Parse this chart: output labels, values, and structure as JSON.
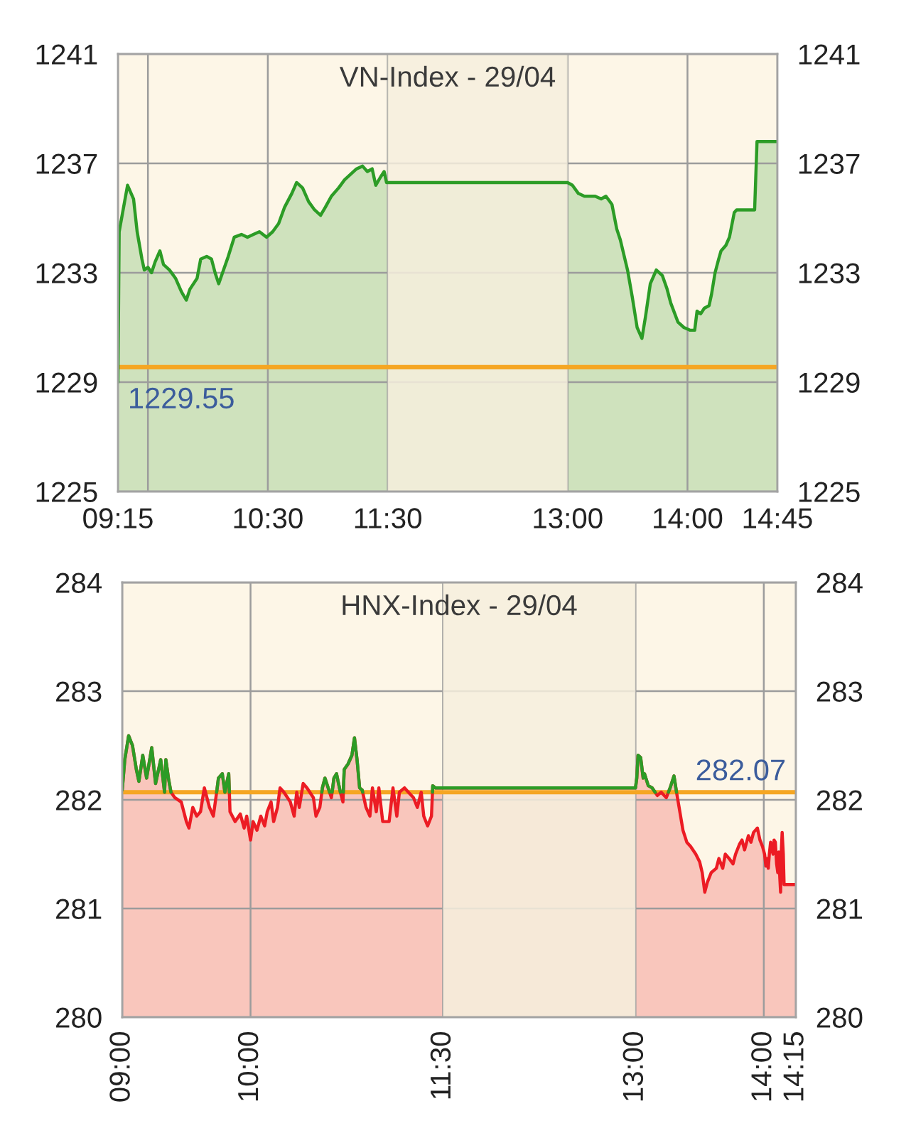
{
  "chart_data": [
    {
      "type": "area",
      "title": "VN-Index - 29/04",
      "x": [
        9.25,
        9.26,
        9.33,
        9.38,
        9.41,
        9.45,
        9.47,
        9.5,
        9.53,
        9.56,
        9.6,
        9.63,
        9.68,
        9.73,
        9.78,
        9.82,
        9.85,
        9.91,
        9.94,
        9.99,
        10.03,
        10.06,
        10.09,
        10.13,
        10.17,
        10.22,
        10.28,
        10.33,
        10.38,
        10.43,
        10.49,
        10.54,
        10.59,
        10.64,
        10.7,
        10.74,
        10.79,
        10.84,
        10.89,
        10.94,
        10.98,
        11.03,
        11.09,
        11.14,
        11.19,
        11.24,
        11.29,
        11.33,
        11.37,
        11.4,
        11.44,
        11.47,
        11.49,
        11.5,
        13.0,
        13.04,
        13.09,
        13.14,
        13.23,
        13.28,
        13.32,
        13.37,
        13.41,
        13.44,
        13.5,
        13.54,
        13.58,
        13.62,
        13.65,
        13.69,
        13.74,
        13.79,
        13.83,
        13.86,
        13.92,
        13.97,
        14.02,
        14.06,
        14.08,
        14.11,
        14.14,
        14.18,
        14.2,
        14.23,
        14.26,
        14.28,
        14.32,
        14.35,
        14.39,
        14.41,
        14.56,
        14.58,
        14.75
      ],
      "series": [
        {
          "color": "#2c9c26",
          "values": [
            1229.0,
            1234.5,
            1236.2,
            1235.7,
            1234.5,
            1233.5,
            1233.1,
            1233.2,
            1233.0,
            1233.4,
            1233.8,
            1233.3,
            1233.1,
            1232.8,
            1232.3,
            1232.0,
            1232.4,
            1232.8,
            1233.5,
            1233.6,
            1233.5,
            1233.0,
            1232.6,
            1233.1,
            1233.6,
            1234.3,
            1234.4,
            1234.3,
            1234.4,
            1234.5,
            1234.3,
            1234.5,
            1234.8,
            1235.4,
            1235.9,
            1236.3,
            1236.1,
            1235.6,
            1235.3,
            1235.1,
            1235.4,
            1235.8,
            1236.1,
            1236.4,
            1236.6,
            1236.8,
            1236.9,
            1236.7,
            1236.8,
            1236.2,
            1236.5,
            1236.7,
            1236.3,
            1236.3,
            1236.3,
            1236.2,
            1235.9,
            1235.8,
            1235.8,
            1235.7,
            1235.8,
            1235.5,
            1234.6,
            1234.2,
            1233.1,
            1232.1,
            1231.0,
            1230.6,
            1231.4,
            1232.6,
            1233.1,
            1232.9,
            1232.4,
            1231.9,
            1231.2,
            1231.0,
            1230.9,
            1230.9,
            1231.6,
            1231.5,
            1231.7,
            1231.8,
            1232.2,
            1233.0,
            1233.5,
            1233.8,
            1234.0,
            1234.3,
            1235.2,
            1235.3,
            1235.3,
            1237.8,
            1237.8
          ]
        }
      ],
      "xlim": [
        9.25,
        14.75
      ],
      "xticks": [
        {
          "value": 9.25,
          "label": "09:15"
        },
        {
          "value": 9.5,
          "label": null
        },
        {
          "value": 10.5,
          "label": "10:30"
        },
        {
          "value": 11.5,
          "label": "11:30"
        },
        {
          "value": 13,
          "label": "13:00"
        },
        {
          "value": 14,
          "label": "14:00"
        },
        {
          "value": 14.75,
          "label": "14:45"
        }
      ],
      "ylim": [
        1225,
        1241
      ],
      "yticks": [
        1225,
        1229,
        1233,
        1237,
        1241
      ],
      "y2lim": [
        1225,
        1241
      ],
      "y2ticks": [
        1225,
        1229,
        1233,
        1237,
        1241
      ],
      "ref_lines": [
        {
          "axis": "y",
          "value": 1229.55,
          "label": "1229.55",
          "color": "#f5a623"
        }
      ],
      "bands": [
        {
          "axis": "x",
          "from": 11.5,
          "to": 13,
          "color": "#f6efdd"
        }
      ],
      "grid": true
    },
    {
      "type": "area",
      "title": "HNX-Index - 29/04",
      "x": [
        9.0,
        9.02,
        9.05,
        9.08,
        9.11,
        9.13,
        9.16,
        9.19,
        9.23,
        9.26,
        9.3,
        9.33,
        9.34,
        9.36,
        9.38,
        9.41,
        9.46,
        9.5,
        9.52,
        9.55,
        9.58,
        9.61,
        9.64,
        9.68,
        9.71,
        9.73,
        9.75,
        9.78,
        9.8,
        9.83,
        9.84,
        9.88,
        9.92,
        9.95,
        9.97,
        10.0,
        10.02,
        10.05,
        10.08,
        10.11,
        10.13,
        10.16,
        10.18,
        10.21,
        10.23,
        10.26,
        10.31,
        10.34,
        10.36,
        10.38,
        10.41,
        10.44,
        10.49,
        10.51,
        10.54,
        10.56,
        10.58,
        10.63,
        10.65,
        10.67,
        10.7,
        10.72,
        10.73,
        10.76,
        10.79,
        10.81,
        10.83,
        10.85,
        10.87,
        10.9,
        10.93,
        10.95,
        10.98,
        11.0,
        11.03,
        11.08,
        11.11,
        11.14,
        11.16,
        11.2,
        11.23,
        11.27,
        11.3,
        11.33,
        11.35,
        11.38,
        11.41,
        11.42,
        11.44,
        11.5,
        13.0,
        13.01,
        13.02,
        13.04,
        13.06,
        13.07,
        13.1,
        13.13,
        13.17,
        13.2,
        13.24,
        13.27,
        13.3,
        13.32,
        13.34,
        13.37,
        13.4,
        13.43,
        13.47,
        13.5,
        13.52,
        13.54,
        13.56,
        13.59,
        13.63,
        13.65,
        13.68,
        13.7,
        13.73,
        13.76,
        13.78,
        13.81,
        13.83,
        13.85,
        13.88,
        13.9,
        13.92,
        13.95,
        13.97,
        13.99,
        14.006,
        14.016,
        14.026,
        14.035,
        14.043,
        14.053,
        14.063,
        14.072,
        14.08,
        14.09,
        14.1,
        14.109,
        14.117,
        14.125,
        14.131,
        14.137,
        14.143,
        14.152,
        14.158,
        14.25
      ],
      "series": [
        {
          "color": "#ec1c24",
          "values": [
            282.09,
            282.37,
            282.59,
            282.5,
            282.28,
            282.17,
            282.41,
            282.2,
            282.48,
            282.15,
            282.37,
            282.07,
            282.37,
            282.2,
            282.07,
            282.02,
            281.98,
            281.8,
            281.74,
            281.93,
            281.85,
            281.89,
            282.11,
            281.93,
            281.85,
            282.02,
            282.2,
            282.24,
            282.07,
            282.24,
            281.89,
            281.8,
            281.87,
            281.74,
            281.85,
            281.63,
            281.8,
            281.72,
            281.85,
            281.76,
            281.89,
            281.98,
            281.8,
            281.93,
            282.11,
            282.07,
            281.98,
            281.85,
            282.07,
            281.93,
            282.15,
            282.11,
            282.02,
            281.85,
            281.93,
            282.11,
            282.2,
            282.02,
            282.2,
            282.24,
            282.07,
            281.98,
            282.28,
            282.33,
            282.41,
            282.57,
            282.37,
            282.11,
            282.09,
            281.93,
            281.85,
            282.11,
            281.89,
            282.11,
            281.8,
            281.8,
            282.11,
            281.85,
            282.07,
            282.11,
            282.07,
            282.02,
            281.93,
            282.07,
            281.85,
            281.76,
            281.85,
            282.13,
            282.11,
            282.11,
            282.11,
            282.2,
            282.41,
            282.39,
            282.2,
            282.24,
            282.13,
            282.11,
            282.04,
            282.07,
            282.02,
            282.11,
            282.22,
            282.07,
            281.93,
            281.72,
            281.61,
            281.57,
            281.5,
            281.43,
            281.33,
            281.15,
            281.24,
            281.33,
            281.37,
            281.46,
            281.37,
            281.5,
            281.46,
            281.41,
            281.5,
            281.59,
            281.63,
            281.54,
            281.67,
            281.61,
            281.7,
            281.74,
            281.63,
            281.57,
            281.5,
            281.39,
            281.46,
            281.37,
            281.5,
            281.61,
            281.54,
            281.5,
            281.63,
            281.61,
            281.41,
            281.33,
            281.52,
            281.28,
            281.15,
            281.54,
            281.7,
            281.5,
            281.22,
            281.22
          ]
        },
        {
          "type": "line",
          "color": "#2c9c26",
          "x": [
            9.0,
            9.02,
            9.05,
            9.08,
            9.11,
            9.13,
            9.16,
            9.19,
            9.23,
            9.26,
            9.3,
            9.33,
            9.34,
            9.36,
            9.38,
            9.395,
            9.736,
            9.75,
            9.78,
            9.8,
            9.83,
            9.835,
            9.9,
            10.556,
            10.56,
            10.58,
            10.616,
            10.62,
            10.636,
            10.65,
            10.67,
            10.7,
            10.71,
            10.723,
            10.73,
            10.76,
            10.79,
            10.81,
            10.83,
            10.85,
            10.87,
            10.874,
            10.91,
            11.418,
            11.42,
            11.44,
            11.5,
            13.0,
            13.01,
            13.02,
            13.04,
            13.06,
            13.07,
            13.1,
            13.13,
            13.153,
            13.18,
            13.257,
            13.27,
            13.3,
            13.32
          ],
          "values": [
            282.09,
            282.37,
            282.59,
            282.5,
            282.28,
            282.17,
            282.41,
            282.2,
            282.48,
            282.15,
            282.37,
            282.07,
            282.37,
            282.2,
            282.07,
            null,
            282.07,
            282.2,
            282.24,
            282.07,
            282.24,
            282.07,
            null,
            282.07,
            282.11,
            282.2,
            282.07,
            null,
            282.07,
            282.2,
            282.24,
            282.07,
            null,
            282.07,
            282.28,
            282.33,
            282.41,
            282.57,
            282.37,
            282.11,
            282.09,
            282.07,
            null,
            282.07,
            282.13,
            282.11,
            282.11,
            282.11,
            282.2,
            282.41,
            282.39,
            282.2,
            282.24,
            282.13,
            282.11,
            282.07,
            null,
            282.07,
            282.11,
            282.22,
            282.07
          ]
        }
      ],
      "xlim": [
        9,
        14.25
      ],
      "xticks": [
        {
          "value": 9,
          "label": "09:00"
        },
        {
          "value": 10,
          "label": "10:00"
        },
        {
          "value": 11.5,
          "label": "11:30"
        },
        {
          "value": 13,
          "label": "13:00"
        },
        {
          "value": 14,
          "label": "14:00"
        },
        {
          "value": 14.25,
          "label": "14:15"
        }
      ],
      "ylim": [
        280,
        284
      ],
      "yticks": [
        280,
        281,
        282,
        283,
        284
      ],
      "y2lim": [
        280,
        284
      ],
      "y2ticks": [
        280,
        281,
        282,
        283,
        284
      ],
      "ref_lines": [
        {
          "axis": "y",
          "value": 282.07,
          "label": "282.07",
          "color": "#f5a623"
        }
      ],
      "bands": [
        {
          "axis": "x",
          "from": 11.5,
          "to": 13,
          "color": "#f6efdd"
        }
      ],
      "grid": true
    }
  ]
}
